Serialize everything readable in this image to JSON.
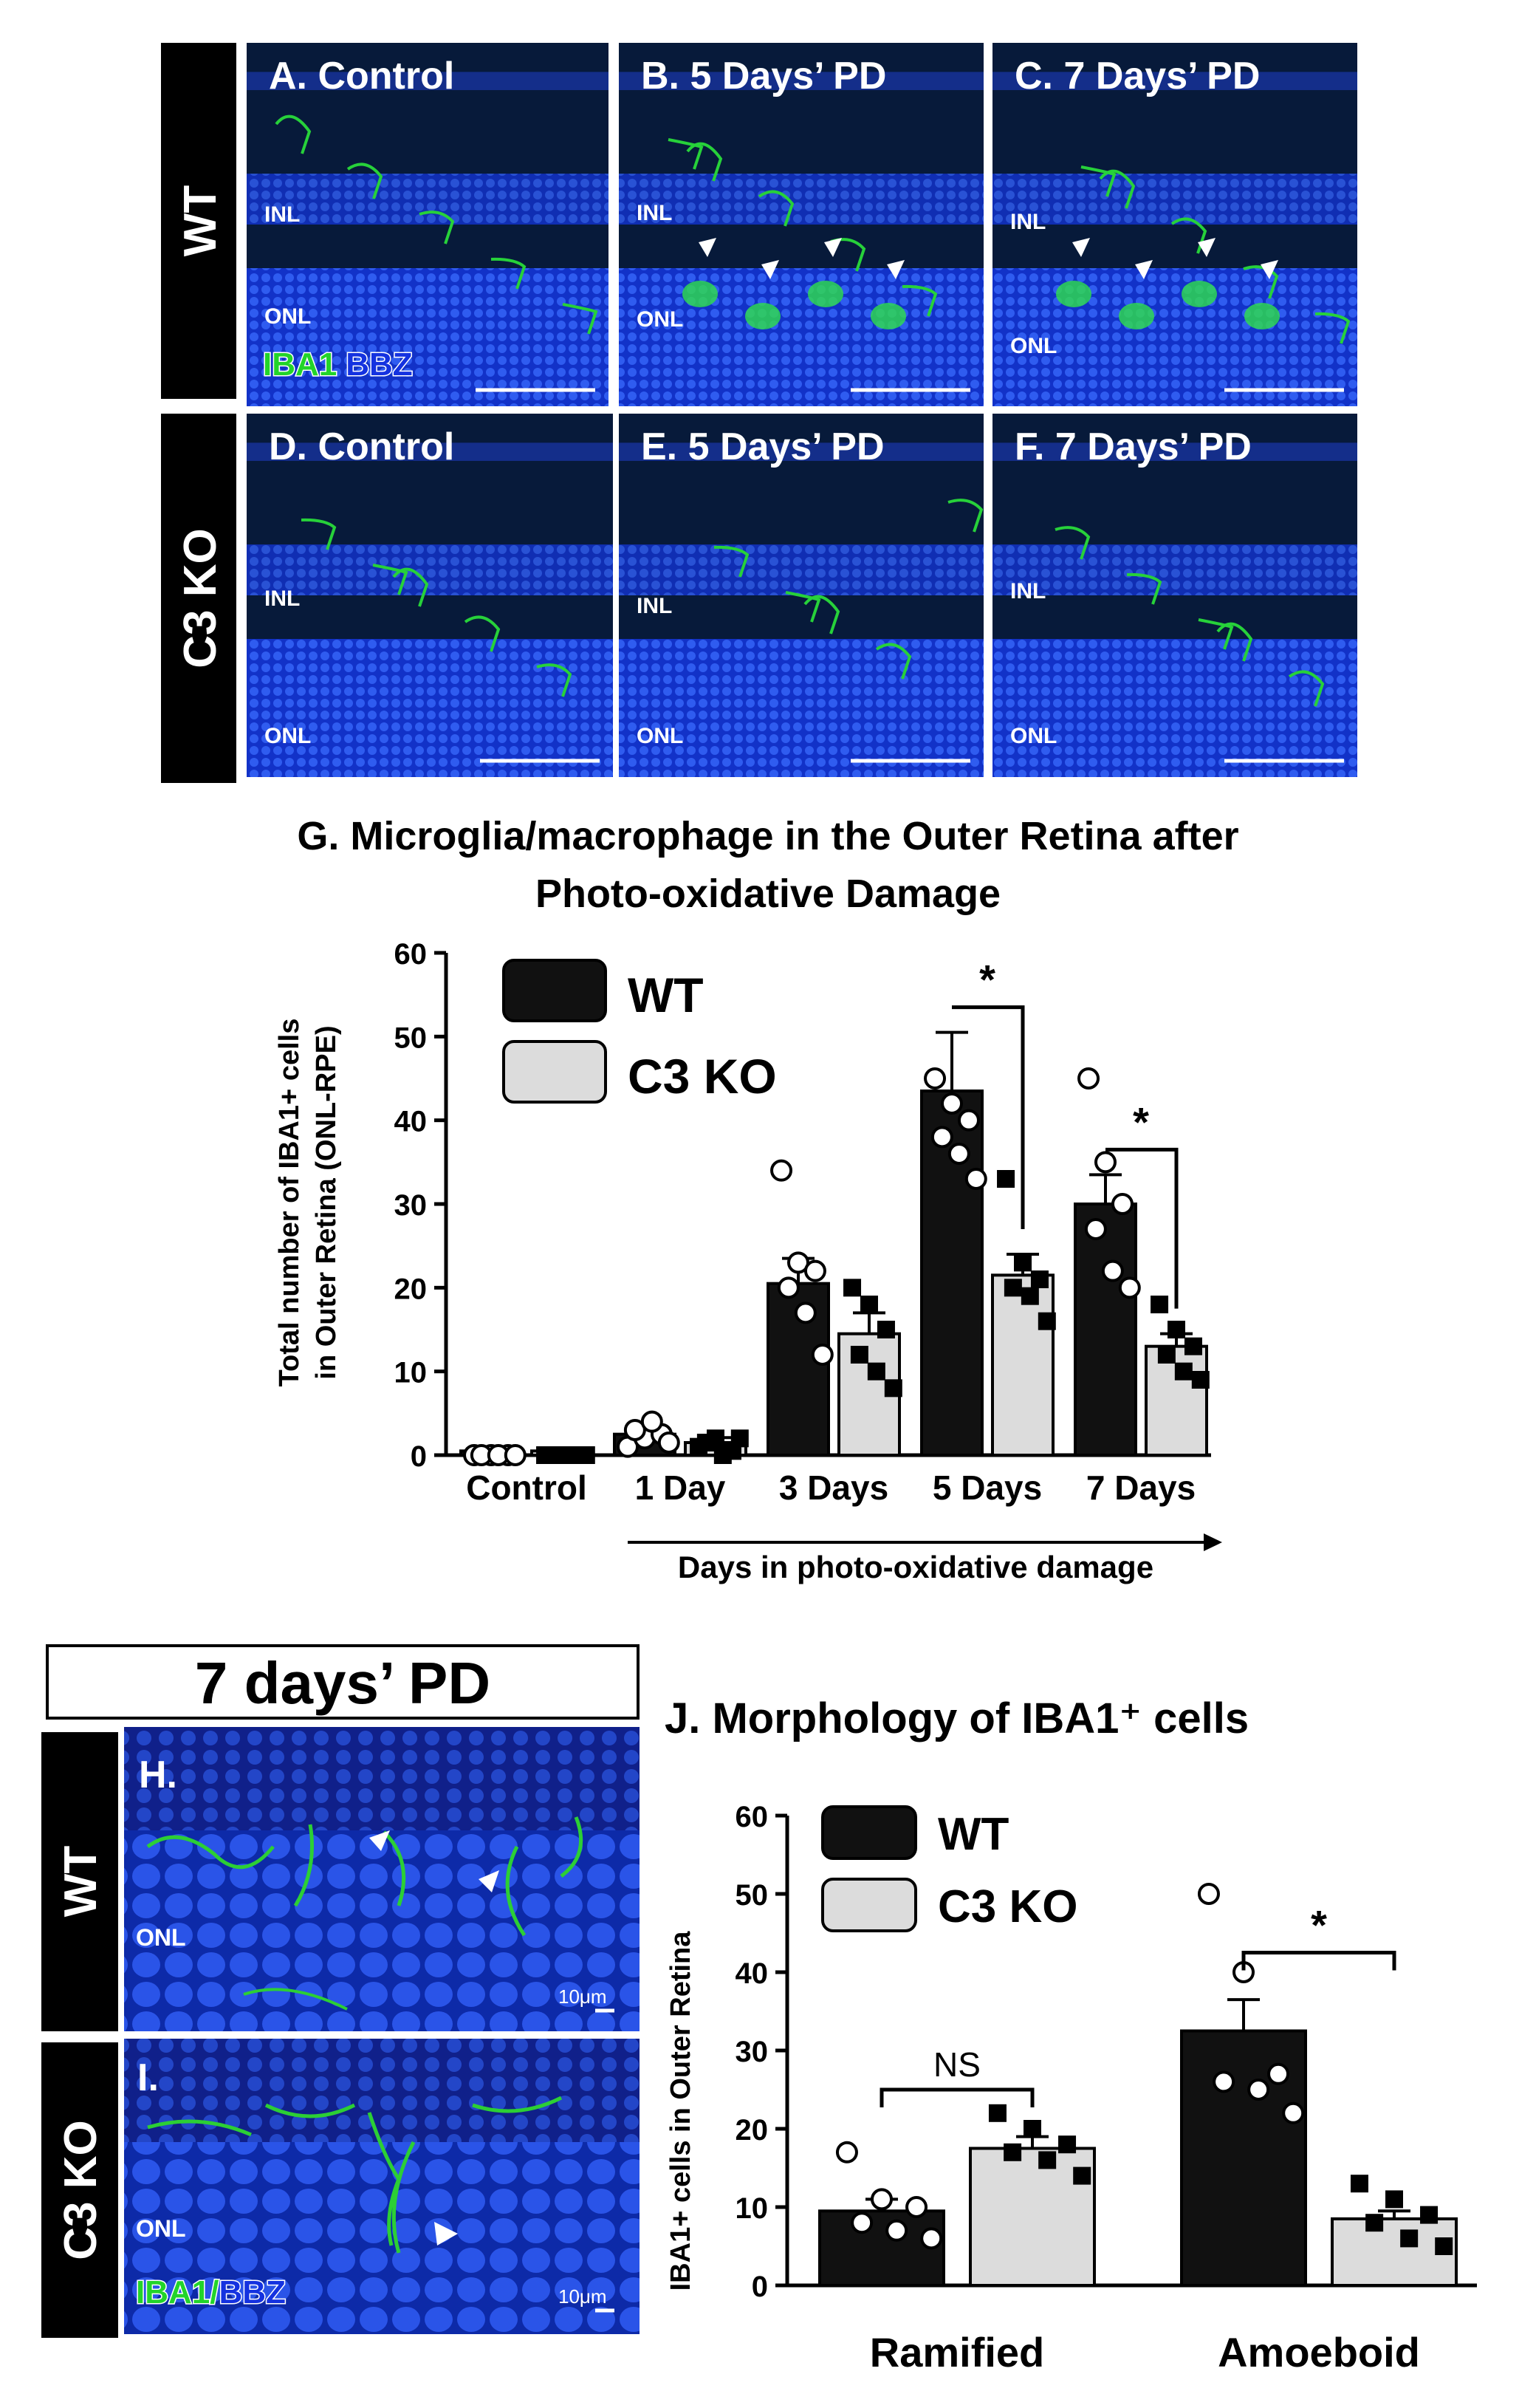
{
  "panels": {
    "top_row_labels": [
      "WT",
      "C3 KO"
    ],
    "A": {
      "label": "A. Control",
      "layers": [
        "INL",
        "ONL"
      ],
      "stain": {
        "iba1": "IBA1",
        "bbz": "BBZ"
      }
    },
    "B": {
      "label": "B. 5 Days’ PD",
      "layers": [
        "INL",
        "ONL"
      ]
    },
    "C": {
      "label": "C. 7 Days’ PD",
      "layers": [
        "INL",
        "ONL"
      ]
    },
    "D": {
      "label": "D. Control",
      "layers": [
        "INL",
        "ONL"
      ]
    },
    "E": {
      "label": "E. 5 Days’ PD",
      "layers": [
        "INL",
        "ONL"
      ]
    },
    "F": {
      "label": "F. 7 Days’ PD",
      "layers": [
        "INL",
        "ONL"
      ]
    },
    "H": {
      "label": "H.",
      "row": "WT",
      "layer": "ONL",
      "scale": "10μm"
    },
    "I": {
      "label": "I.",
      "row": "C3 KO",
      "layer": "ONL",
      "scale": "10μm",
      "stain": {
        "iba1": "IBA1",
        "sep": "/",
        "bbz": "BBZ"
      }
    },
    "pd_header": "7 days’ PD"
  },
  "colors": {
    "wt": "#111111",
    "c3ko": "#dcdcdc",
    "nuclei": "#1e3fd4",
    "iba1": "#22d42a"
  },
  "chart_data": [
    {
      "type": "bar",
      "id": "G",
      "title": "G. Microglia/macrophage in the Outer Retina after Photo-oxidative Damage",
      "title_lines": [
        "G. Microglia/macrophage in the Outer Retina after",
        "Photo-oxidative Damage"
      ],
      "ylabel_lines": [
        "Total number of IBA1+ cells",
        "in Outer Retina (ONL-RPE)"
      ],
      "xlabel": "Days in photo-oxidative damage",
      "categories": [
        "Control",
        "1 Day",
        "3 Days",
        "5 Days",
        "7 Days"
      ],
      "ylim": [
        0,
        60
      ],
      "yticks": [
        0,
        10,
        20,
        30,
        40,
        50,
        60
      ],
      "legend": {
        "position": "top-left"
      },
      "series": [
        {
          "name": "WT",
          "values": [
            0.5,
            2.5,
            20.5,
            43.5,
            30
          ],
          "sem": [
            0.2,
            0.8,
            3,
            7,
            3.5
          ],
          "points": [
            [
              0,
              0,
              0,
              0,
              0,
              0
            ],
            [
              1,
              2,
              2.5,
              3,
              4,
              1.5
            ],
            [
              34,
              23,
              22,
              20,
              17,
              12
            ],
            [
              45,
              42,
              40,
              38,
              36,
              33
            ],
            [
              45,
              35,
              30,
              27,
              22,
              20
            ]
          ]
        },
        {
          "name": "C3 KO",
          "values": [
            0.5,
            1.5,
            14.5,
            21.5,
            13
          ],
          "sem": [
            0.2,
            0.6,
            2.5,
            2.5,
            1.5
          ],
          "points": [
            [
              0,
              0,
              0,
              0,
              0,
              0
            ],
            [
              1,
              2,
              0.5,
              1.5,
              0,
              2
            ],
            [
              20,
              18,
              15,
              12,
              10,
              8
            ],
            [
              33,
              23,
              21,
              20,
              19,
              16
            ],
            [
              18,
              15,
              13,
              12,
              10,
              9
            ]
          ]
        }
      ],
      "significance": [
        {
          "category": "5 Days",
          "label": "*"
        },
        {
          "category": "7 Days",
          "label": "*"
        }
      ]
    },
    {
      "type": "bar",
      "id": "J",
      "title": "J. Morphology of IBA1⁺ cells",
      "ylabel": "IBA1+ cells in Outer Retina",
      "categories": [
        "Ramified",
        "Amoeboid"
      ],
      "ylim": [
        0,
        60
      ],
      "yticks": [
        0,
        10,
        20,
        30,
        40,
        50,
        60
      ],
      "legend": {
        "position": "top-left"
      },
      "series": [
        {
          "name": "WT",
          "values": [
            9.5,
            32.5
          ],
          "sem": [
            1.5,
            4
          ],
          "points": [
            [
              17,
              11,
              10,
              8,
              7,
              6
            ],
            [
              50,
              40,
              27,
              26,
              25,
              22
            ]
          ]
        },
        {
          "name": "C3 KO",
          "values": [
            17.5,
            8.5
          ],
          "sem": [
            1.5,
            1
          ],
          "points": [
            [
              22,
              20,
              18,
              17,
              16,
              14
            ],
            [
              13,
              11,
              9,
              8,
              6,
              5
            ]
          ]
        }
      ],
      "significance": [
        {
          "category": "Ramified",
          "label": "NS"
        },
        {
          "category": "Amoeboid",
          "label": "*"
        }
      ]
    }
  ]
}
